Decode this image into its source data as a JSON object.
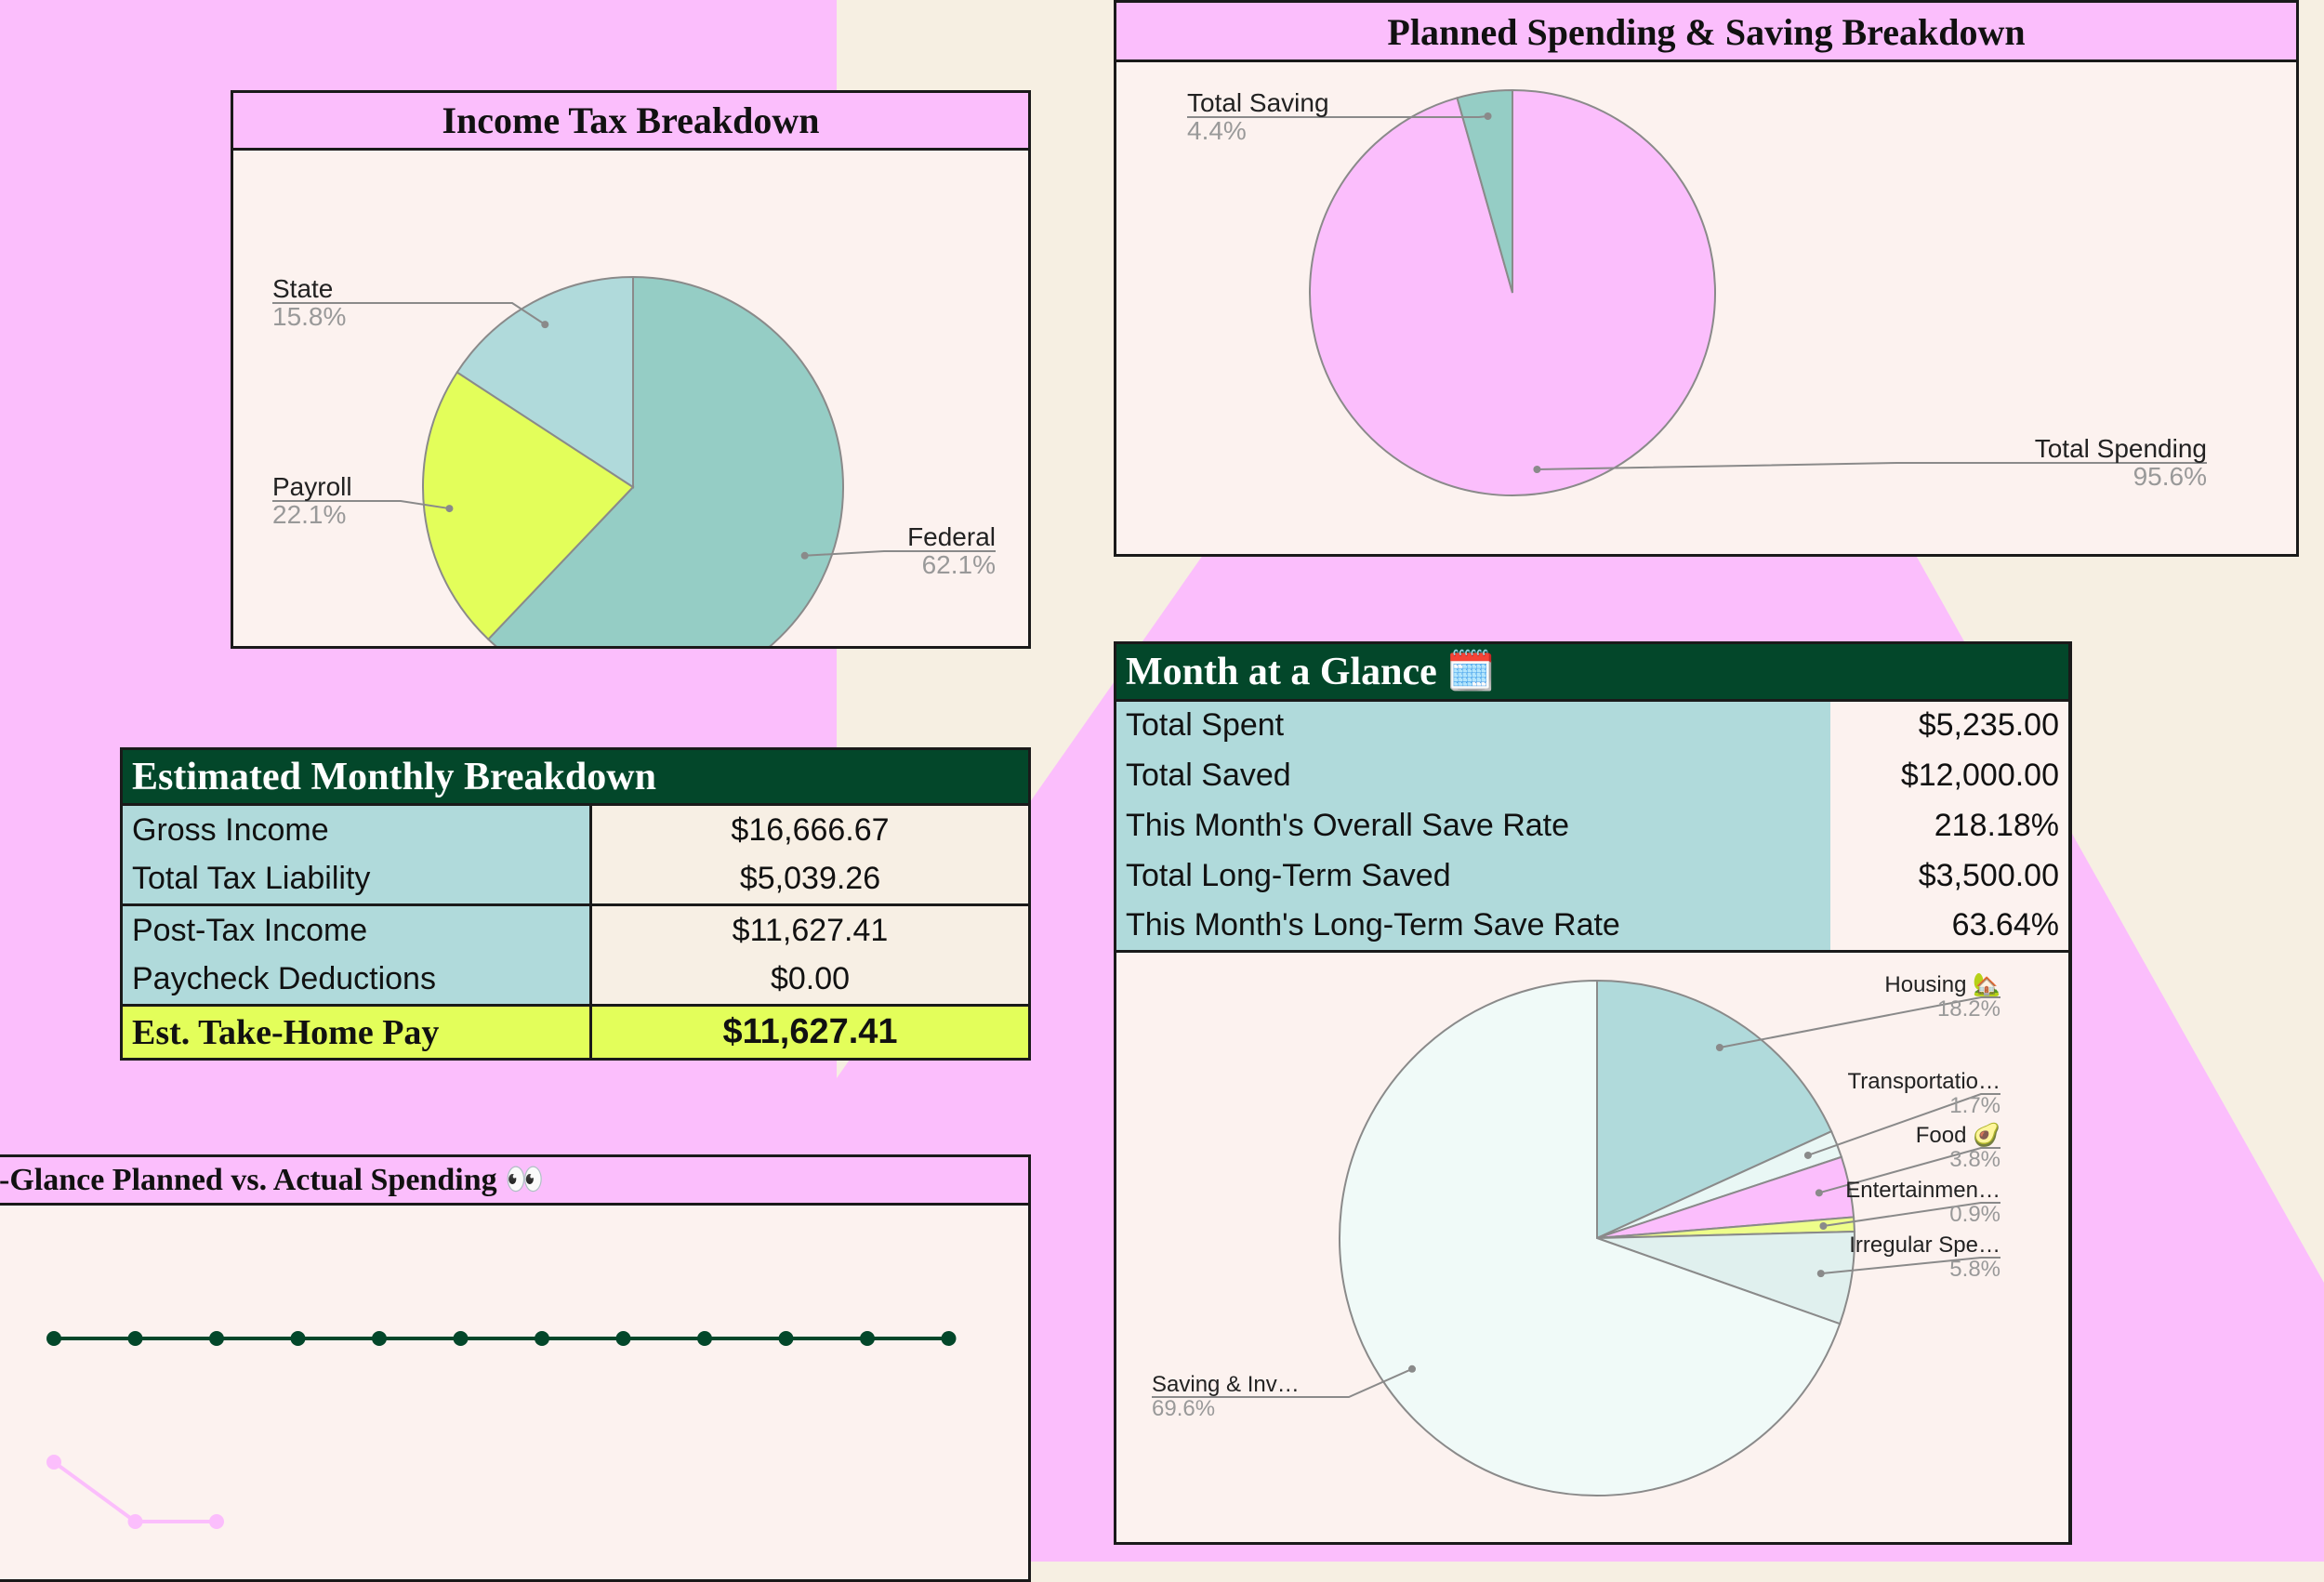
{
  "colors": {
    "pink": "#fbbefc",
    "cream": "#f6efe2",
    "dark_green": "#03472a",
    "teal": "#b0dadb",
    "seafoam": "#95cdc5",
    "lime": "#e3fe5a",
    "panel_bg": "#fcf2ef"
  },
  "income_tax_chart": {
    "title": "Income Tax Breakdown",
    "chart_data": {
      "type": "pie",
      "slices": [
        {
          "label": "Federal",
          "percent_label": "62.1%",
          "value": 62.1,
          "color": "#95cdc5"
        },
        {
          "label": "Payroll",
          "percent_label": "22.1%",
          "value": 22.1,
          "color": "#e3fe5a"
        },
        {
          "label": "State",
          "percent_label": "15.8%",
          "value": 15.8,
          "color": "#b0dadb"
        }
      ]
    }
  },
  "planned_chart": {
    "title": "Planned Spending & Saving Breakdown",
    "chart_data": {
      "type": "pie",
      "slices": [
        {
          "label": "Total Spending",
          "percent_label": "95.6%",
          "value": 95.6,
          "color": "#fbbefc"
        },
        {
          "label": "Total Saving",
          "percent_label": "4.4%",
          "value": 4.4,
          "color": "#95cdc5"
        }
      ]
    }
  },
  "monthly_breakdown": {
    "title": "Estimated Monthly Breakdown",
    "rows": [
      {
        "label": "Gross Income",
        "value": "$16,666.67"
      },
      {
        "label": "Total Tax Liability",
        "value": "$5,039.26"
      },
      {
        "label": "Post-Tax Income",
        "value": "$11,627.41"
      },
      {
        "label": "Paycheck Deductions",
        "value": "$0.00"
      }
    ],
    "total": {
      "label": "Est. Take-Home Pay",
      "value": "$11,627.41"
    }
  },
  "month_glance": {
    "title": "Month at a Glance 🗓️",
    "rows": [
      {
        "label": "Total Spent",
        "value": "$5,235.00"
      },
      {
        "label": "Total Saved",
        "value": "$12,000.00"
      },
      {
        "label": "This Month's Overall Save Rate",
        "value": "218.18%"
      },
      {
        "label": "Total Long-Term Saved",
        "value": "$3,500.00"
      },
      {
        "label": "This Month's Long-Term Save Rate",
        "value": "63.64%"
      }
    ],
    "chart_data": {
      "type": "pie",
      "slices": [
        {
          "label": "Housing 🏡",
          "percent_label": "18.2%",
          "value": 18.2,
          "color": "#b0dadb"
        },
        {
          "label": "Transportatio…",
          "percent_label": "1.7%",
          "value": 1.7,
          "color": "#e9f7f5"
        },
        {
          "label": "Food 🥑",
          "percent_label": "3.8%",
          "value": 3.8,
          "color": "#fbbefc"
        },
        {
          "label": "Entertainmen…",
          "percent_label": "0.9%",
          "value": 0.9,
          "color": "#eefe8a"
        },
        {
          "label": "Irregular Spe…",
          "percent_label": "5.8%",
          "value": 5.8,
          "color": "#e0f0ee"
        },
        {
          "label": "Saving & Inv…",
          "percent_label": "69.6%",
          "value": 69.6,
          "color": "#f0faf8"
        }
      ]
    }
  },
  "spending_chart": {
    "title": "-Glance Planned vs. Actual Spending 👀",
    "chart_data": {
      "type": "line",
      "series": [
        {
          "values": [
            1,
            1,
            1,
            1,
            1,
            1,
            1,
            1,
            1,
            1,
            1,
            1
          ],
          "color": "#03472a"
        },
        {
          "values": [
            0.32,
            0,
            0
          ],
          "color": "#fbbefc"
        }
      ]
    }
  }
}
